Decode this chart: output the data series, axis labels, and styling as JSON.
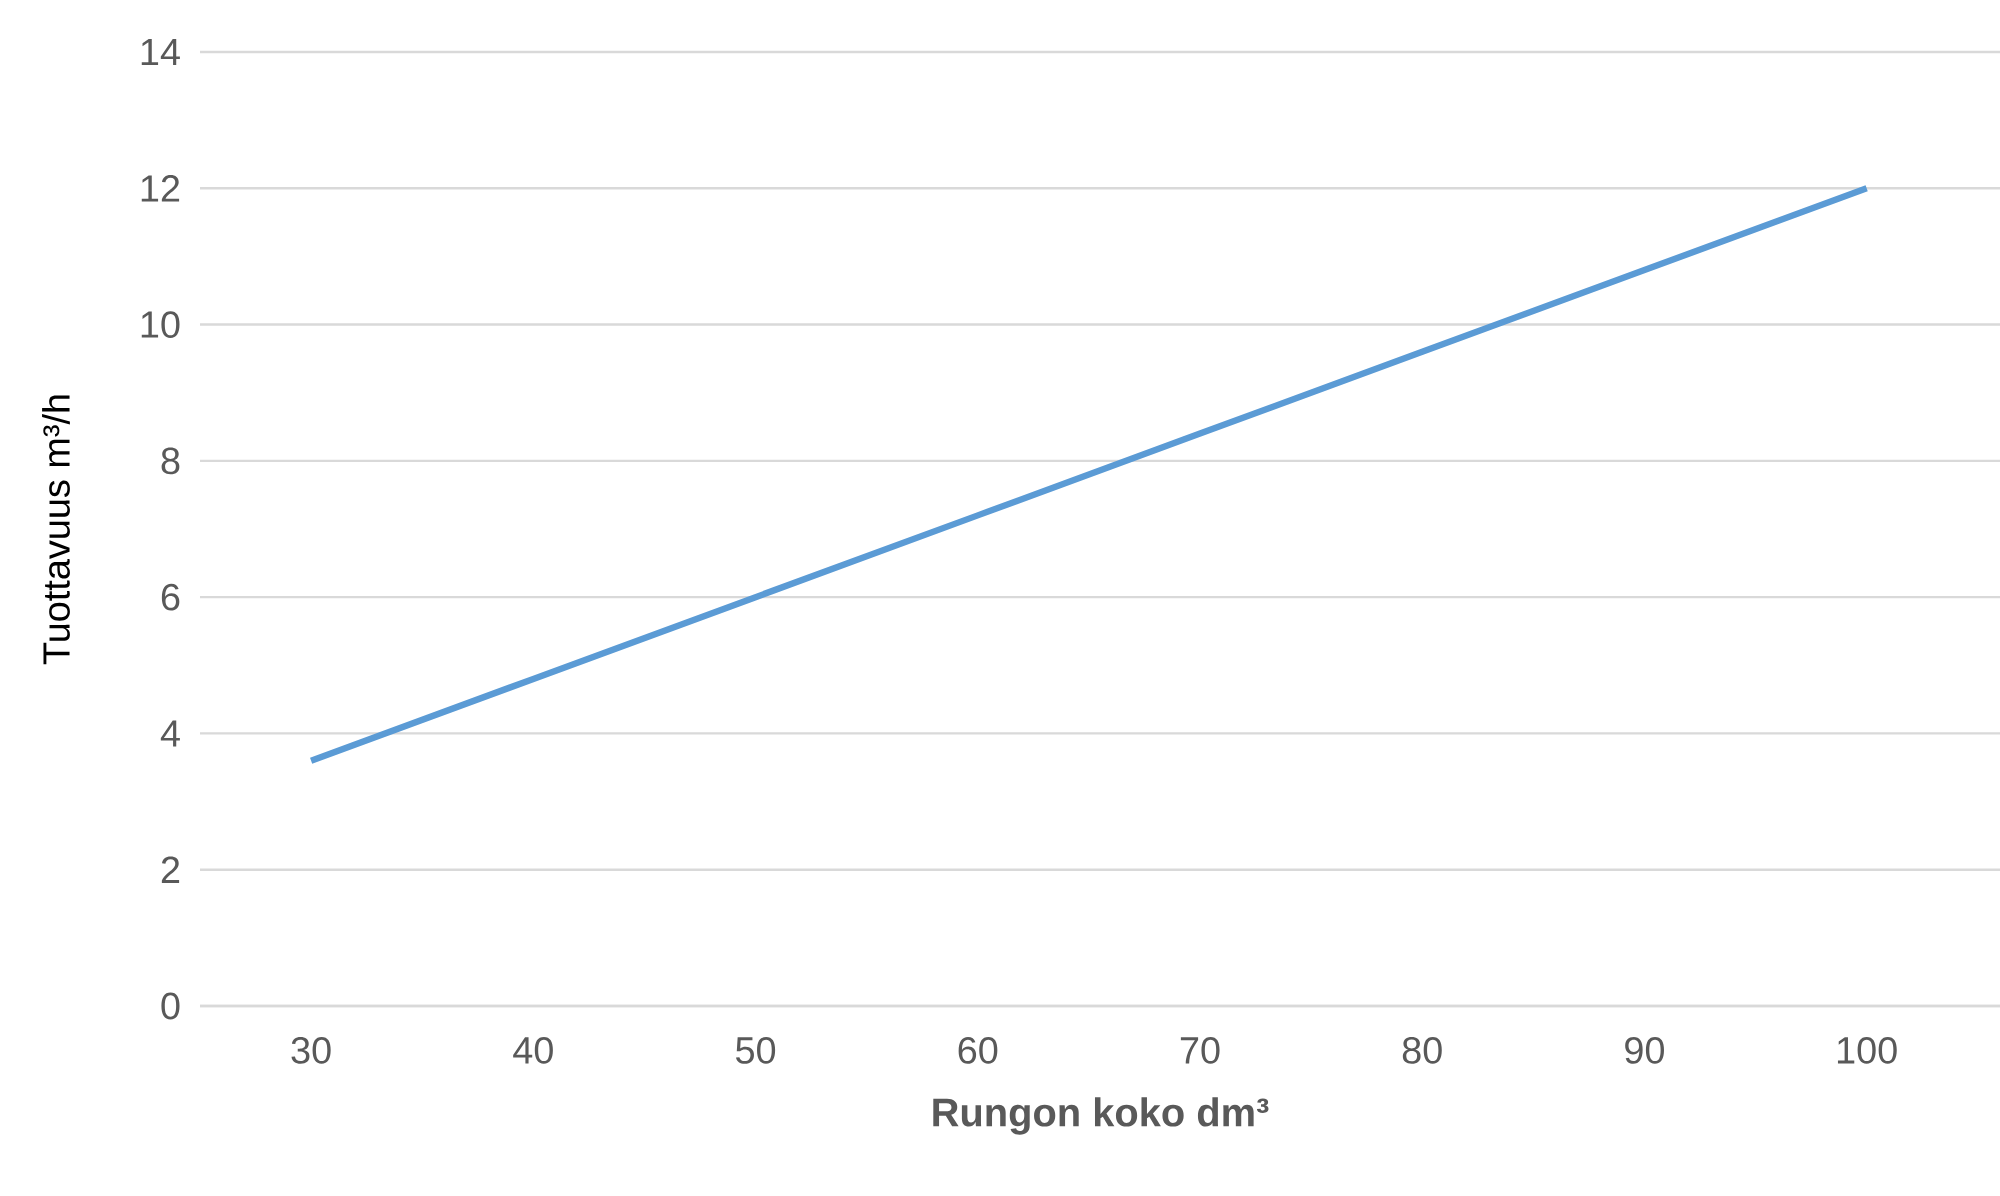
{
  "chart_data": {
    "type": "line",
    "xlabel": "Rungon koko dm³",
    "ylabel": "Tuottavuus m³/h",
    "categories": [
      "30",
      "40",
      "50",
      "60",
      "70",
      "80",
      "90",
      "100"
    ],
    "series": [
      {
        "color": "#5b9bd5",
        "values": [
          3.6,
          4.8,
          6.0,
          7.2,
          8.4,
          9.6,
          10.8,
          12.0
        ]
      }
    ],
    "ylim": [
      0,
      14
    ],
    "yticks": [
      0,
      2,
      4,
      6,
      8,
      10,
      12,
      14
    ],
    "grid": "y",
    "legend": false,
    "marker": "none",
    "line_style": "solid"
  }
}
